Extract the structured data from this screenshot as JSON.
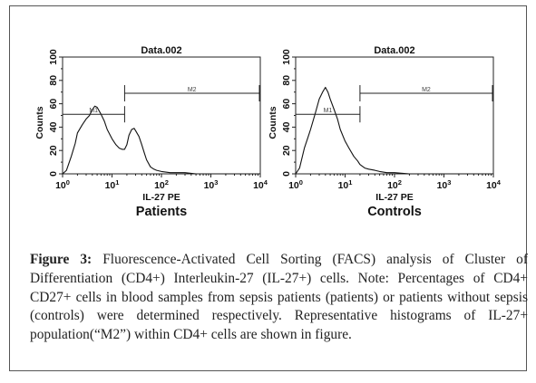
{
  "figure": {
    "label": "Figure 3:",
    "caption": "Fluorescence-Activated Cell Sorting (FACS) analysis of Cluster of Differentiation (CD4+) Interleukin-27 (IL-27+) cells. Note: Percentages of CD4+ CD27+ cells in blood samples from sepsis patients (patients) or patients without sepsis (controls) were determined respectively. Representative histograms of IL-27+ population(“M2”) within CD4+ cells are shown in figure.",
    "panels": [
      {
        "title": "Data.002",
        "ylabel": "Counts",
        "xlabel": "IL-27 PE",
        "group_label": "Patients",
        "y_ticks": [
          "0",
          "20",
          "40",
          "60",
          "80",
          "100"
        ],
        "x_tick_labels": [
          {
            "base": "10",
            "exp": "0"
          },
          {
            "base": "10",
            "exp": "1"
          },
          {
            "base": "10",
            "exp": "2"
          },
          {
            "base": "10",
            "exp": "3"
          },
          {
            "base": "10",
            "exp": "4"
          }
        ],
        "markers": [
          {
            "name": "M1",
            "label": "M1",
            "from": 1,
            "to": 18,
            "y": 51
          },
          {
            "name": "M2",
            "label": "M2",
            "from": 18,
            "to": 10000,
            "y": 69
          }
        ]
      },
      {
        "title": "Data.002",
        "ylabel": "Counts",
        "xlabel": "IL-27 PE",
        "group_label": "Controls",
        "y_ticks": [
          "0",
          "20",
          "40",
          "60",
          "80",
          "100"
        ],
        "x_tick_labels": [
          {
            "base": "10",
            "exp": "0"
          },
          {
            "base": "10",
            "exp": "1"
          },
          {
            "base": "10",
            "exp": "2"
          },
          {
            "base": "10",
            "exp": "3"
          },
          {
            "base": "10",
            "exp": "4"
          }
        ],
        "markers": [
          {
            "name": "M1",
            "label": "M1",
            "from": 1,
            "to": 20,
            "y": 51
          },
          {
            "name": "M2",
            "label": "M2",
            "from": 20,
            "to": 10000,
            "y": 69
          }
        ]
      }
    ]
  },
  "chart_data": [
    {
      "type": "area",
      "title": "Data.002",
      "xlabel": "IL-27 PE",
      "ylabel": "Counts",
      "x_scale": "log",
      "xlim": [
        1,
        10000
      ],
      "ylim": [
        0,
        100
      ],
      "series": [
        {
          "name": "Patients",
          "x": [
            1,
            1.2,
            1.5,
            1.8,
            2.0,
            2.5,
            3.0,
            3.5,
            4.0,
            4.5,
            5.0,
            6.0,
            7.0,
            8.0,
            10,
            12,
            14,
            16,
            18,
            20,
            22,
            25,
            28,
            30,
            35,
            40,
            45,
            50,
            60,
            70,
            80,
            100,
            150,
            200,
            300,
            500,
            1000,
            2000,
            10000
          ],
          "y": [
            0,
            3,
            15,
            26,
            35,
            42,
            47,
            50,
            55,
            58,
            57,
            51,
            45,
            38,
            30,
            25,
            22,
            21,
            21,
            25,
            33,
            38,
            39,
            37,
            32,
            25,
            18,
            12,
            6,
            4,
            3,
            2,
            1,
            1,
            1,
            0,
            0,
            0,
            0
          ]
        }
      ]
    },
    {
      "type": "area",
      "title": "Data.002",
      "xlabel": "IL-27 PE",
      "ylabel": "Counts",
      "x_scale": "log",
      "xlim": [
        1,
        10000
      ],
      "ylim": [
        0,
        100
      ],
      "series": [
        {
          "name": "Controls",
          "x": [
            1,
            1.2,
            1.5,
            1.8,
            2.0,
            2.5,
            3.0,
            3.5,
            4.0,
            4.5,
            5.0,
            6.0,
            7.0,
            8.0,
            10,
            12,
            15,
            18,
            20,
            25,
            30,
            40,
            50,
            70,
            100,
            200,
            500,
            1000,
            10000
          ],
          "y": [
            0,
            5,
            22,
            32,
            38,
            52,
            64,
            70,
            74,
            70,
            64,
            55,
            47,
            38,
            28,
            22,
            15,
            11,
            8,
            5,
            4,
            3,
            2,
            1,
            1,
            0,
            0,
            0,
            0
          ]
        }
      ]
    }
  ]
}
